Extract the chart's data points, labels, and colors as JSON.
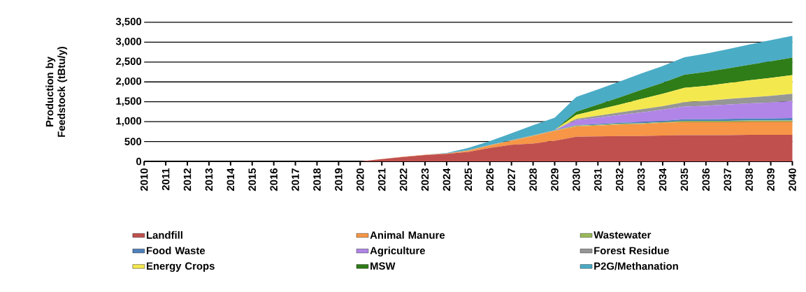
{
  "chart_data": {
    "type": "area",
    "stacked": true,
    "ylabel": "Production by Feedstock (tBtu/y)",
    "categories": [
      "2010",
      "2011",
      "2012",
      "2013",
      "2014",
      "2015",
      "2016",
      "2017",
      "2018",
      "2019",
      "2020",
      "2021",
      "2022",
      "2023",
      "2024",
      "2025",
      "2026",
      "2027",
      "2028",
      "2029",
      "2030",
      "2031",
      "2032",
      "2033",
      "2034",
      "2035",
      "2036",
      "2037",
      "2038",
      "2039",
      "2040"
    ],
    "series": [
      {
        "name": "Landfill",
        "color": "#c0504d",
        "values": [
          0,
          0,
          0,
          0,
          0,
          0,
          0,
          0,
          0,
          0,
          0,
          60,
          110,
          160,
          190,
          240,
          340,
          420,
          450,
          520,
          620,
          630,
          640,
          640,
          650,
          660,
          660,
          660,
          670,
          670,
          670
        ]
      },
      {
        "name": "Animal Manure",
        "color": "#f79646",
        "values": [
          0,
          0,
          0,
          0,
          0,
          0,
          0,
          0,
          0,
          0,
          0,
          0,
          10,
          10,
          10,
          30,
          60,
          100,
          190,
          250,
          260,
          270,
          290,
          300,
          320,
          330,
          330,
          330,
          330,
          330,
          330
        ]
      },
      {
        "name": "Wastewater",
        "color": "#9bbb59",
        "values": [
          0,
          0,
          0,
          0,
          0,
          0,
          0,
          0,
          0,
          0,
          0,
          0,
          0,
          0,
          0,
          10,
          10,
          10,
          10,
          10,
          20,
          20,
          20,
          20,
          20,
          30,
          30,
          30,
          30,
          30,
          30
        ]
      },
      {
        "name": "Food Waste",
        "color": "#4f81bd",
        "values": [
          0,
          0,
          0,
          0,
          0,
          0,
          0,
          0,
          0,
          0,
          0,
          0,
          0,
          0,
          0,
          10,
          10,
          10,
          10,
          10,
          10,
          20,
          20,
          30,
          30,
          40,
          40,
          50,
          50,
          50,
          60
        ]
      },
      {
        "name": "Agriculture",
        "color": "#b185e8",
        "values": [
          0,
          0,
          0,
          0,
          0,
          0,
          0,
          0,
          0,
          0,
          0,
          0,
          0,
          0,
          0,
          0,
          0,
          0,
          0,
          0,
          130,
          160,
          200,
          240,
          280,
          320,
          340,
          360,
          380,
          400,
          430
        ]
      },
      {
        "name": "Forest Residue",
        "color": "#969696",
        "values": [
          0,
          0,
          0,
          0,
          0,
          0,
          0,
          0,
          0,
          0,
          0,
          0,
          0,
          0,
          0,
          0,
          0,
          0,
          0,
          0,
          30,
          50,
          60,
          80,
          90,
          110,
          120,
          140,
          150,
          170,
          180
        ]
      },
      {
        "name": "Energy Crops",
        "color": "#f4e84f",
        "values": [
          0,
          0,
          0,
          0,
          0,
          0,
          0,
          0,
          0,
          0,
          0,
          0,
          0,
          0,
          0,
          0,
          0,
          0,
          0,
          0,
          100,
          150,
          200,
          260,
          310,
          360,
          380,
          400,
          430,
          450,
          470
        ]
      },
      {
        "name": "MSW",
        "color": "#2e7d18",
        "values": [
          0,
          0,
          0,
          0,
          0,
          0,
          0,
          0,
          0,
          0,
          0,
          0,
          0,
          0,
          0,
          0,
          0,
          0,
          0,
          0,
          80,
          130,
          180,
          230,
          280,
          330,
          350,
          370,
          390,
          420,
          440
        ]
      },
      {
        "name": "P2G/Methanation",
        "color": "#4bacc6",
        "values": [
          0,
          0,
          0,
          0,
          0,
          0,
          0,
          0,
          0,
          0,
          0,
          0,
          0,
          0,
          10,
          50,
          90,
          170,
          250,
          310,
          370,
          380,
          400,
          410,
          420,
          440,
          460,
          480,
          510,
          530,
          550
        ]
      }
    ],
    "ylim": [
      0,
      3500
    ],
    "yticks": [
      0,
      {
        "value": 500,
        "label": "500"
      },
      {
        "value": 1000,
        "label": "1,000"
      },
      {
        "value": 1500,
        "label": "1,500"
      },
      {
        "value": 2000,
        "label": "2,000"
      },
      {
        "value": 2500,
        "label": "2,500"
      },
      {
        "value": 3000,
        "label": "3,000"
      },
      {
        "value": 3500,
        "label": "3,500"
      }
    ],
    "grid": "y",
    "legend": "bottom"
  }
}
